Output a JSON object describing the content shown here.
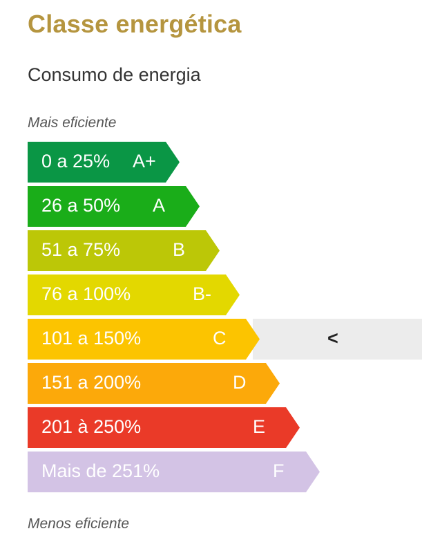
{
  "header": {
    "title": "Classe energética",
    "title_color": "#b5953f",
    "subtitle": "Consumo de energia"
  },
  "scale": {
    "top_caption": "Mais eficiente",
    "bottom_caption": "Menos eficiente",
    "current_marker": "<",
    "current_grade": "C",
    "marker_background": "#ececec",
    "classes": [
      {
        "range": "0 a 25%",
        "grade": "A+",
        "color": "#0a9645"
      },
      {
        "range": "26 a 50%",
        "grade": "A",
        "color": "#1aad19"
      },
      {
        "range": "51 a 75%",
        "grade": "B",
        "color": "#bcc707"
      },
      {
        "range": "76 a 100%",
        "grade": "B-",
        "color": "#e3d800"
      },
      {
        "range": "101 a 150%",
        "grade": "C",
        "color": "#fcc400"
      },
      {
        "range": "151 a 200%",
        "grade": "D",
        "color": "#fca90a"
      },
      {
        "range": "201 à 250%",
        "grade": "E",
        "color": "#ea3a28"
      },
      {
        "range": "Mais de 251%",
        "grade": "F",
        "color": "#d3c3e5"
      }
    ]
  }
}
